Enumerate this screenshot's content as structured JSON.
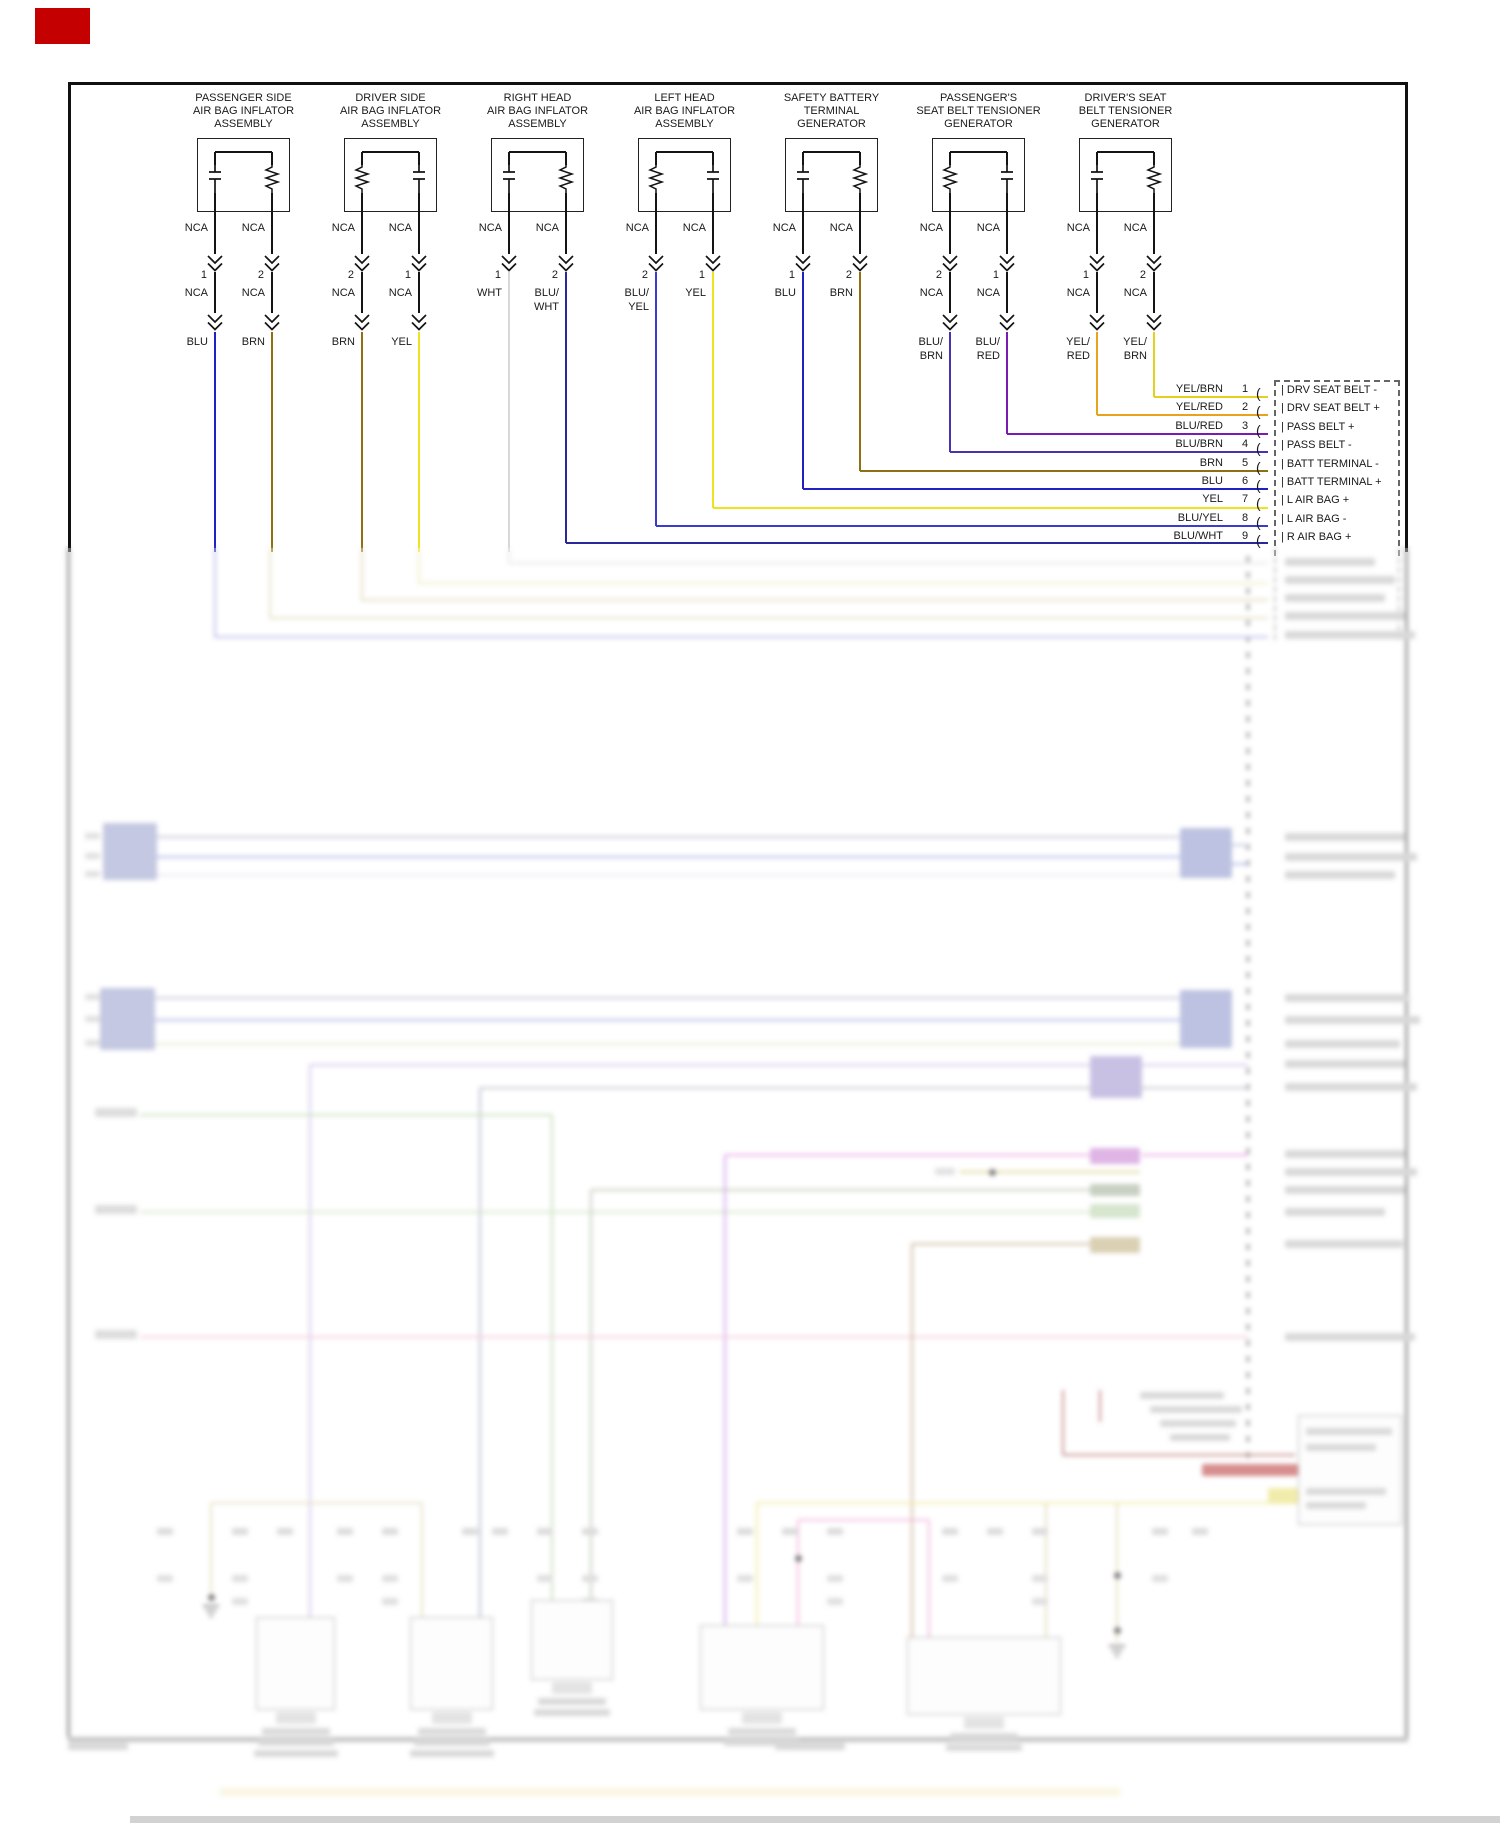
{
  "badge": {
    "color": "#c40000"
  },
  "components": [
    {
      "title": [
        "PASSENGER SIDE",
        "AIR BAG INFLATOR",
        "ASSEMBLY"
      ],
      "squib": "left",
      "wires": [
        {
          "pin": "1",
          "top_label": "NCA",
          "mid_label": [
            "NCA"
          ],
          "bottom_label": [
            "BLU"
          ],
          "color": "BLU"
        },
        {
          "pin": "2",
          "top_label": "NCA",
          "mid_label": [
            "NCA"
          ],
          "bottom_label": [
            "BRN"
          ],
          "color": "BRN"
        }
      ]
    },
    {
      "title": [
        "DRIVER SIDE",
        "AIR BAG INFLATOR",
        "ASSEMBLY"
      ],
      "squib": "right",
      "wires": [
        {
          "pin": "2",
          "top_label": "NCA",
          "mid_label": [
            "NCA"
          ],
          "bottom_label": [
            "BRN"
          ],
          "color": "BRN"
        },
        {
          "pin": "1",
          "top_label": "NCA",
          "mid_label": [
            "NCA"
          ],
          "bottom_label": [
            "YEL"
          ],
          "color": "YEL"
        }
      ]
    },
    {
      "title": [
        "RIGHT HEAD",
        "AIR BAG INFLATOR",
        "ASSEMBLY"
      ],
      "squib": "left",
      "wires": [
        {
          "pin": "1",
          "top_label": "NCA",
          "mid_label": [
            "WHT"
          ],
          "color": "WHT"
        },
        {
          "pin": "2",
          "top_label": "NCA",
          "mid_label": [
            "BLU/",
            "WHT"
          ],
          "color": "BLU_WHT"
        }
      ]
    },
    {
      "title": [
        "LEFT HEAD",
        "AIR BAG INFLATOR",
        "ASSEMBLY"
      ],
      "squib": "right",
      "wires": [
        {
          "pin": "2",
          "top_label": "NCA",
          "mid_label": [
            "BLU/",
            "YEL"
          ],
          "color": "BLU_YEL"
        },
        {
          "pin": "1",
          "top_label": "NCA",
          "mid_label": [
            "YEL"
          ],
          "color": "YEL"
        }
      ]
    },
    {
      "title": [
        "SAFETY BATTERY",
        "TERMINAL",
        "GENERATOR"
      ],
      "squib": "left",
      "wires": [
        {
          "pin": "1",
          "top_label": "NCA",
          "mid_label": [
            "BLU"
          ],
          "color": "BLU"
        },
        {
          "pin": "2",
          "top_label": "NCA",
          "mid_label": [
            "BRN"
          ],
          "color": "BRN"
        }
      ]
    },
    {
      "title": [
        "PASSENGER'S",
        "SEAT BELT TENSIONER",
        "GENERATOR"
      ],
      "squib": "right",
      "wires": [
        {
          "pin": "2",
          "top_label": "NCA",
          "mid_label": [
            "NCA"
          ],
          "bottom_label": [
            "BLU/",
            "BRN"
          ],
          "color": "BLU_BRN"
        },
        {
          "pin": "1",
          "top_label": "NCA",
          "mid_label": [
            "NCA"
          ],
          "bottom_label": [
            "BLU/",
            "RED"
          ],
          "color": "BLU_RED"
        }
      ]
    },
    {
      "title": [
        "DRIVER'S SEAT",
        "BELT TENSIONER",
        "GENERATOR"
      ],
      "squib": "left",
      "wires": [
        {
          "pin": "1",
          "top_label": "NCA",
          "mid_label": [
            "NCA"
          ],
          "bottom_label": [
            "YEL/",
            "RED"
          ],
          "color": "YEL_RED"
        },
        {
          "pin": "2",
          "top_label": "NCA",
          "mid_label": [
            "NCA"
          ],
          "bottom_label": [
            "YEL/",
            "BRN"
          ],
          "color": "YEL_BRN"
        }
      ]
    }
  ],
  "connector": {
    "rows": [
      {
        "pin": "1",
        "wire": "YEL/BRN",
        "label": "DRV SEAT BELT -"
      },
      {
        "pin": "2",
        "wire": "YEL/RED",
        "label": "DRV SEAT BELT +"
      },
      {
        "pin": "3",
        "wire": "BLU/RED",
        "label": "PASS BELT +"
      },
      {
        "pin": "4",
        "wire": "BLU/BRN",
        "label": "PASS BELT -"
      },
      {
        "pin": "5",
        "wire": "BRN",
        "label": "BATT TERMINAL -"
      },
      {
        "pin": "6",
        "wire": "BLU",
        "label": "BATT TERMINAL +"
      },
      {
        "pin": "7",
        "wire": "YEL",
        "label": "L AIR BAG +"
      },
      {
        "pin": "8",
        "wire": "BLU/YEL",
        "label": "L AIR BAG -"
      },
      {
        "pin": "9",
        "wire": "BLU/WHT",
        "label": "R AIR BAG +"
      }
    ]
  },
  "colors": {
    "BLACK": "#141414",
    "BLU": "#2020c4",
    "BRN": "#8f6f12",
    "YEL": "#efe21f",
    "WHT": "#d8d8d8",
    "BLU_WHT": "#28289a",
    "BLU_YEL": "#3c3ccc",
    "BLU_RED": "#7d1bb0",
    "BLU_BRN": "#4633b4",
    "YEL_RED": "#e8a21c",
    "YEL_BRN": "#e4d01e"
  }
}
